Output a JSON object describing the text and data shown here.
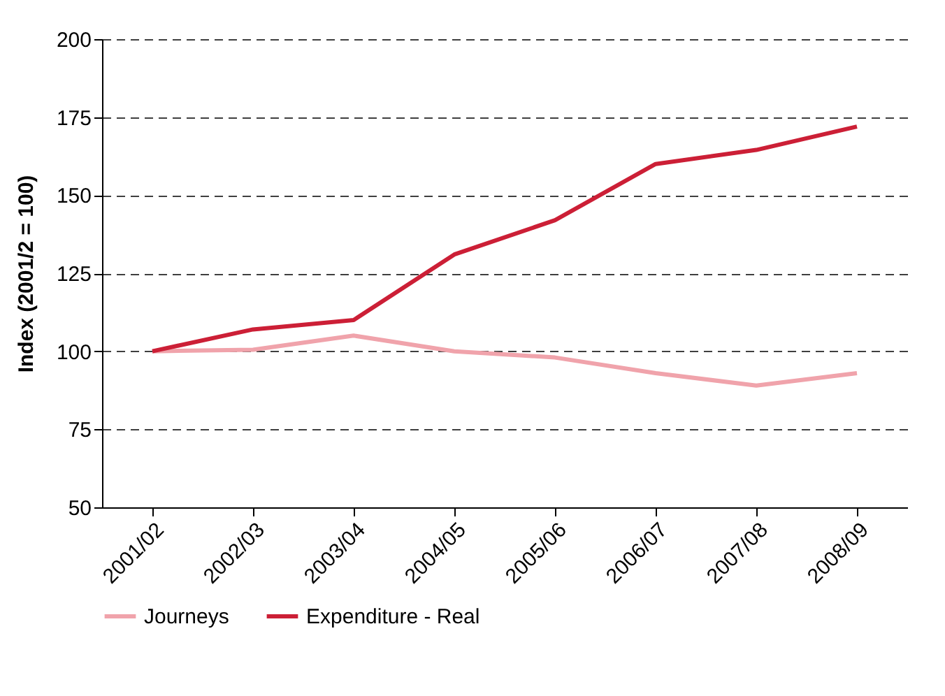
{
  "chart_data": {
    "type": "line",
    "ylabel": "Index (2001/2 = 100)",
    "categories": [
      "2001/02",
      "2002/03",
      "2003/04",
      "2004/05",
      "2005/06",
      "2006/07",
      "2007/08",
      "2008/09"
    ],
    "series": [
      {
        "name": "Journeys",
        "color": "#f0a3ab",
        "values": [
          100,
          100.5,
          105,
          100,
          98,
          93,
          89,
          93
        ]
      },
      {
        "name": "Expenditure - Real",
        "color": "#cc1f36",
        "values": [
          100,
          107,
          110,
          131,
          142,
          160,
          164.5,
          172
        ]
      }
    ],
    "ylim": [
      50,
      200
    ],
    "yticks": [
      50,
      75,
      100,
      125,
      150,
      175,
      200
    ],
    "grid": "y",
    "legend": "bottom",
    "marker": "none",
    "line_style": "solid"
  }
}
